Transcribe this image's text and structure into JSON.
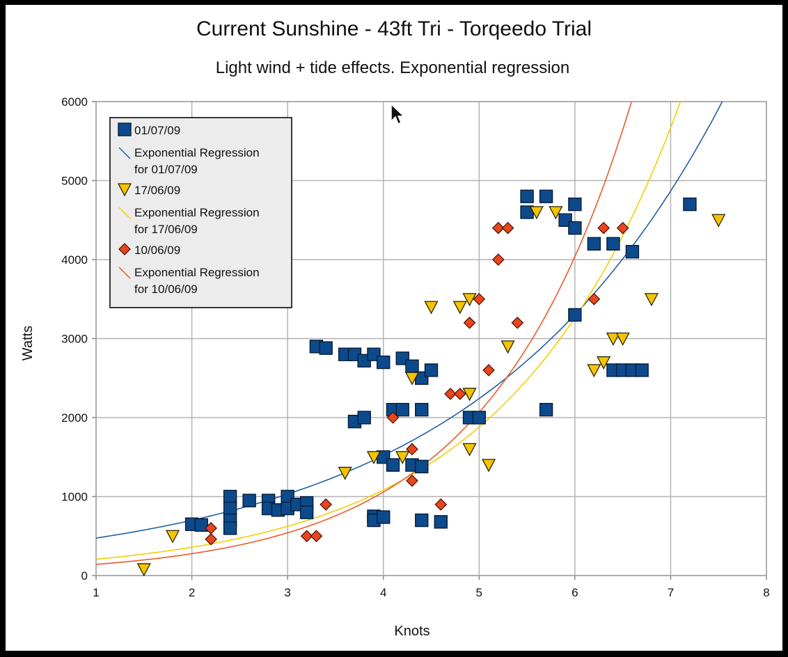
{
  "chart_data": {
    "type": "scatter",
    "title": "Current Sunshine - 43ft Tri - Torqeedo Trial",
    "subtitle": "Light wind + tide effects. Exponential regression",
    "xlabel": "Knots",
    "ylabel": "Watts",
    "xlim": [
      1,
      8
    ],
    "ylim": [
      0,
      6000
    ],
    "xticks": [
      "1",
      "2",
      "3",
      "4",
      "5",
      "6",
      "7",
      "8"
    ],
    "yticks": [
      "0",
      "1000",
      "2000",
      "3000",
      "4000",
      "5000",
      "6000"
    ],
    "grid": true,
    "legend_position": "top-left",
    "series": [
      {
        "name": "01/07/09",
        "marker": "square",
        "color": "#0d4a8c",
        "trend_label": "Exponential Regression for 01/07/09",
        "trend_color": "#1f5fa6",
        "trend": {
          "a": 322,
          "b": 0.388
        },
        "points": [
          [
            2.0,
            650
          ],
          [
            2.1,
            640
          ],
          [
            2.4,
            1000
          ],
          [
            2.4,
            850
          ],
          [
            2.4,
            700
          ],
          [
            2.4,
            600
          ],
          [
            2.6,
            950
          ],
          [
            2.8,
            950
          ],
          [
            2.8,
            850
          ],
          [
            2.9,
            830
          ],
          [
            3.0,
            1000
          ],
          [
            3.0,
            850
          ],
          [
            3.1,
            900
          ],
          [
            3.2,
            920
          ],
          [
            3.2,
            800
          ],
          [
            3.3,
            2900
          ],
          [
            3.4,
            2880
          ],
          [
            3.6,
            2800
          ],
          [
            3.7,
            2800
          ],
          [
            3.7,
            1950
          ],
          [
            3.8,
            2720
          ],
          [
            3.8,
            2000
          ],
          [
            3.9,
            2800
          ],
          [
            3.9,
            750
          ],
          [
            3.9,
            700
          ],
          [
            4.0,
            2700
          ],
          [
            4.0,
            1500
          ],
          [
            4.0,
            740
          ],
          [
            4.1,
            2100
          ],
          [
            4.1,
            1400
          ],
          [
            4.2,
            2750
          ],
          [
            4.2,
            2100
          ],
          [
            4.3,
            2650
          ],
          [
            4.3,
            1400
          ],
          [
            4.4,
            2500
          ],
          [
            4.4,
            2100
          ],
          [
            4.4,
            1380
          ],
          [
            4.4,
            700
          ],
          [
            4.5,
            2600
          ],
          [
            4.6,
            680
          ],
          [
            4.9,
            2000
          ],
          [
            5.0,
            2000
          ],
          [
            5.5,
            4800
          ],
          [
            5.5,
            4600
          ],
          [
            5.7,
            4800
          ],
          [
            5.7,
            2100
          ],
          [
            5.9,
            4500
          ],
          [
            6.0,
            4700
          ],
          [
            6.0,
            4400
          ],
          [
            6.0,
            3300
          ],
          [
            6.2,
            4200
          ],
          [
            6.4,
            4200
          ],
          [
            6.4,
            2600
          ],
          [
            6.5,
            2600
          ],
          [
            6.6,
            4100
          ],
          [
            6.6,
            2600
          ],
          [
            6.7,
            2600
          ],
          [
            7.2,
            4700
          ]
        ]
      },
      {
        "name": "17/06/09",
        "marker": "triangle-down",
        "color": "#f5c400",
        "trend_label": "Exponential Regression for 17/06/09",
        "trend_color": "#f2d000",
        "trend": {
          "a": 119,
          "b": 0.552
        },
        "points": [
          [
            1.5,
            80
          ],
          [
            1.8,
            500
          ],
          [
            3.6,
            1300
          ],
          [
            3.9,
            1500
          ],
          [
            4.2,
            1500
          ],
          [
            4.3,
            2500
          ],
          [
            4.5,
            3400
          ],
          [
            4.8,
            3400
          ],
          [
            4.9,
            3500
          ],
          [
            4.9,
            2300
          ],
          [
            4.9,
            1600
          ],
          [
            5.1,
            1400
          ],
          [
            5.3,
            2900
          ],
          [
            5.6,
            4600
          ],
          [
            5.8,
            4600
          ],
          [
            6.2,
            2600
          ],
          [
            6.3,
            2700
          ],
          [
            6.4,
            3000
          ],
          [
            6.5,
            3000
          ],
          [
            6.8,
            3500
          ],
          [
            7.5,
            4500
          ]
        ]
      },
      {
        "name": "10/06/09",
        "marker": "diamond",
        "color": "#e8461d",
        "trend_label": "Exponential Regression for 10/06/09",
        "trend_color": "#ea5a2a",
        "trend": {
          "a": 72.5,
          "b": 0.67
        },
        "points": [
          [
            2.2,
            600
          ],
          [
            2.2,
            460
          ],
          [
            3.2,
            500
          ],
          [
            3.3,
            500
          ],
          [
            3.4,
            900
          ],
          [
            4.1,
            2000
          ],
          [
            4.3,
            1600
          ],
          [
            4.3,
            1200
          ],
          [
            4.6,
            900
          ],
          [
            4.7,
            2300
          ],
          [
            4.8,
            2300
          ],
          [
            4.9,
            3200
          ],
          [
            5.0,
            3500
          ],
          [
            5.1,
            2600
          ],
          [
            5.2,
            4400
          ],
          [
            5.2,
            4000
          ],
          [
            5.3,
            4400
          ],
          [
            5.4,
            3200
          ],
          [
            6.2,
            3500
          ],
          [
            6.3,
            4400
          ],
          [
            6.5,
            4400
          ]
        ]
      }
    ]
  }
}
